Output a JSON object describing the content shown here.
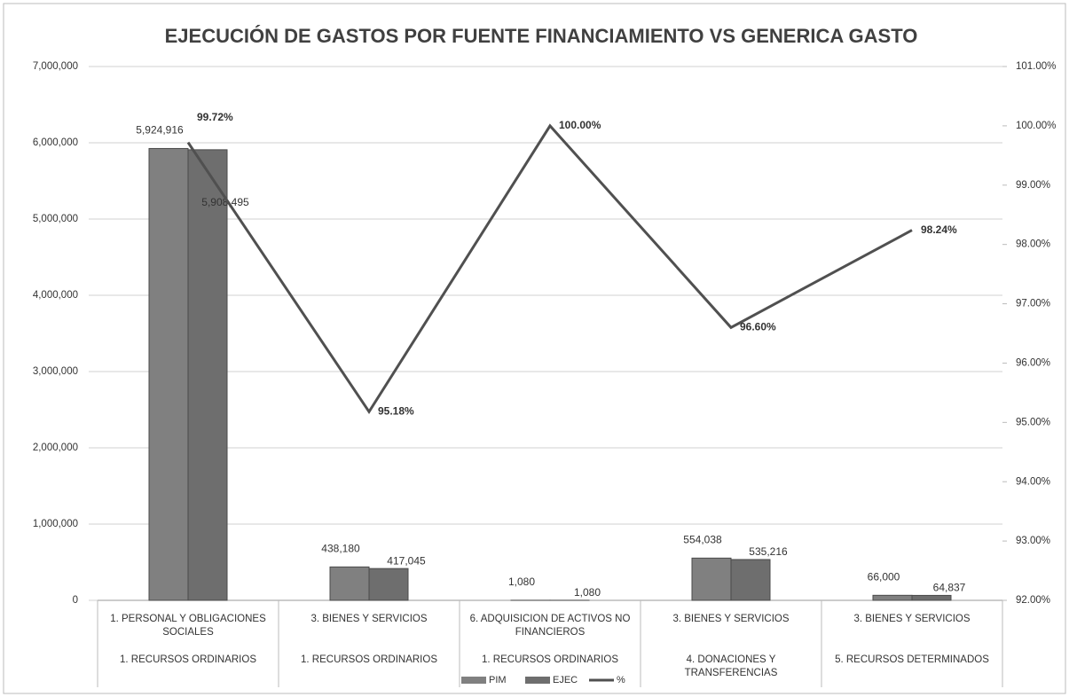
{
  "chart_data": {
    "type": "bar_line",
    "title": "EJECUCIÓN DE GASTOS POR FUENTE FINANCIAMIENTO VS GENERICA GASTO",
    "categories": [
      "1. PERSONAL Y OBLIGACIONES SOCIALES",
      "3. BIENES Y SERVICIOS",
      "6. ADQUISICION DE ACTIVOS NO FINANCIEROS",
      "3. BIENES Y SERVICIOS",
      "3. BIENES Y SERVICIOS"
    ],
    "category_groups": [
      "1. RECURSOS ORDINARIOS",
      "1. RECURSOS ORDINARIOS",
      "1. RECURSOS ORDINARIOS",
      "4. DONACIONES Y TRANSFERENCIAS",
      "5. RECURSOS DETERMINADOS"
    ],
    "series": [
      {
        "name": "PIM",
        "type": "bar",
        "color": "#808080",
        "values": [
          5924916,
          438180,
          1080,
          554038,
          66000
        ],
        "value_labels": [
          "5,924,916",
          "438,180",
          "1,080",
          "554,038",
          "66,000"
        ]
      },
      {
        "name": "EJEC",
        "type": "bar",
        "color": "#6e6e6e",
        "values": [
          5908495,
          417045,
          1080,
          535216,
          64837
        ],
        "value_labels": [
          "5,908,495",
          "417,045",
          "1,080",
          "535,216",
          "64,837"
        ]
      },
      {
        "name": "%",
        "type": "line",
        "axis": "y2",
        "color": "#505050",
        "values": [
          99.72,
          95.18,
          100.0,
          96.6,
          98.24
        ],
        "value_labels": [
          "99.72%",
          "95.18%",
          "100.00%",
          "96.60%",
          "98.24%"
        ]
      }
    ],
    "ylim": [
      0,
      7000000
    ],
    "yticks": [
      0,
      {
        "value": 1000000,
        "label": "1,000,000"
      },
      {
        "value": 2000000,
        "label": "2,000,000"
      },
      {
        "value": 3000000,
        "label": "3,000,000"
      },
      {
        "value": 4000000,
        "label": "4,000,000"
      },
      {
        "value": 5000000,
        "label": "5,000,000"
      },
      {
        "value": 6000000,
        "label": "6,000,000"
      },
      {
        "value": 7000000,
        "label": "7,000,000"
      }
    ],
    "y2lim": [
      92,
      101
    ],
    "y2ticks": [
      {
        "value": 92,
        "label": "92.00%"
      },
      {
        "value": 93,
        "label": "93.00%"
      },
      {
        "value": 94,
        "label": "94.00%"
      },
      {
        "value": 95,
        "label": "95.00%"
      },
      {
        "value": 96,
        "label": "96.00%"
      },
      {
        "value": 97,
        "label": "97.00%"
      },
      {
        "value": 98,
        "label": "98.00%"
      },
      {
        "value": 99,
        "label": "99.00%"
      },
      {
        "value": 100,
        "label": "100.00%"
      },
      {
        "value": 101,
        "label": "101.00%"
      }
    ],
    "grid": true,
    "legend": "bottom"
  }
}
